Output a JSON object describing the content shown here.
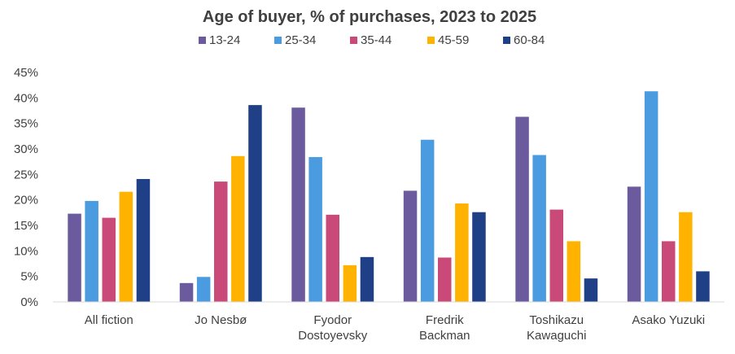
{
  "chart_data": {
    "type": "bar",
    "title": "Age of buyer, % of purchases, 2023 to 2025",
    "xlabel": "",
    "ylabel": "",
    "ylim": [
      0,
      45
    ],
    "yticks": [
      "0%",
      "5%",
      "10%",
      "15%",
      "20%",
      "25%",
      "30%",
      "35%",
      "40%",
      "45%"
    ],
    "grid": false,
    "legend_position": "top",
    "categories": [
      [
        "All fiction"
      ],
      [
        "Jo Nesbø"
      ],
      [
        "Fyodor",
        "Dostoyevsky"
      ],
      [
        "Fredrik",
        "Backman"
      ],
      [
        "Toshikazu",
        "Kawaguchi"
      ],
      [
        "Asako Yuzuki"
      ]
    ],
    "series": [
      {
        "name": "13-24",
        "color": "#6B5A9E",
        "values": [
          17.3,
          3.7,
          38.1,
          21.8,
          36.3,
          22.6
        ]
      },
      {
        "name": "25-34",
        "color": "#4A9BE0",
        "values": [
          19.8,
          4.9,
          28.4,
          31.8,
          28.8,
          41.3
        ]
      },
      {
        "name": "35-44",
        "color": "#C94A78",
        "values": [
          16.5,
          23.6,
          17.1,
          8.7,
          18.1,
          11.9
        ]
      },
      {
        "name": "45-59",
        "color": "#FFB300",
        "values": [
          21.6,
          28.6,
          7.2,
          19.3,
          11.9,
          17.6
        ]
      },
      {
        "name": "60-84",
        "color": "#1F3F86",
        "values": [
          24.1,
          38.6,
          8.8,
          17.6,
          4.6,
          6.0
        ]
      }
    ]
  }
}
